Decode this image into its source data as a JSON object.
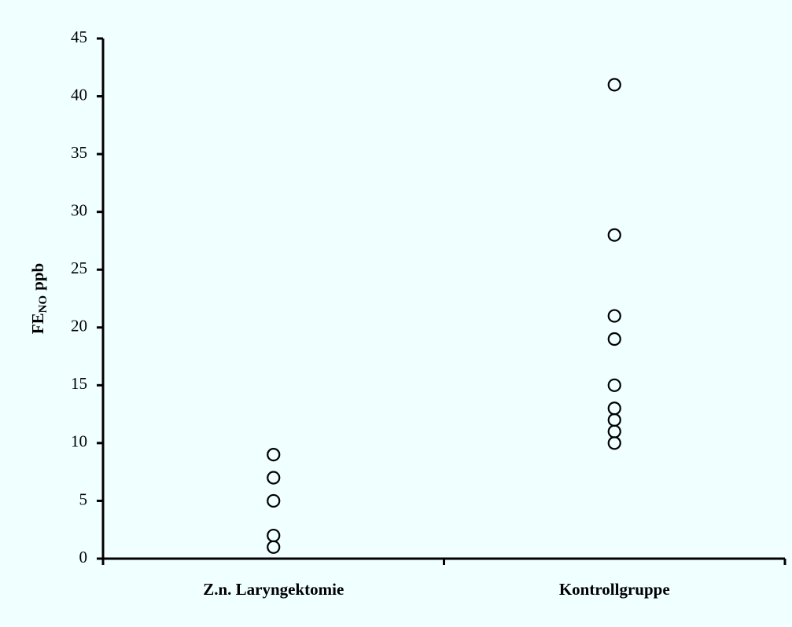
{
  "chart_data": {
    "type": "strip",
    "ylabel": {
      "main": "FE",
      "sub": "NO",
      "rest": "ppb"
    },
    "categories": [
      "Z.n. Laryngektomie",
      "Kontrollgruppe"
    ],
    "values": [
      [
        9,
        7,
        5,
        2,
        1
      ],
      [
        41,
        28,
        21,
        19,
        15,
        13,
        12,
        11,
        10
      ]
    ],
    "color": "#000000",
    "ylim": [
      0,
      45
    ],
    "yticks": [
      0,
      5,
      10,
      15,
      20,
      25,
      30,
      35,
      40,
      45
    ],
    "grid": false
  }
}
